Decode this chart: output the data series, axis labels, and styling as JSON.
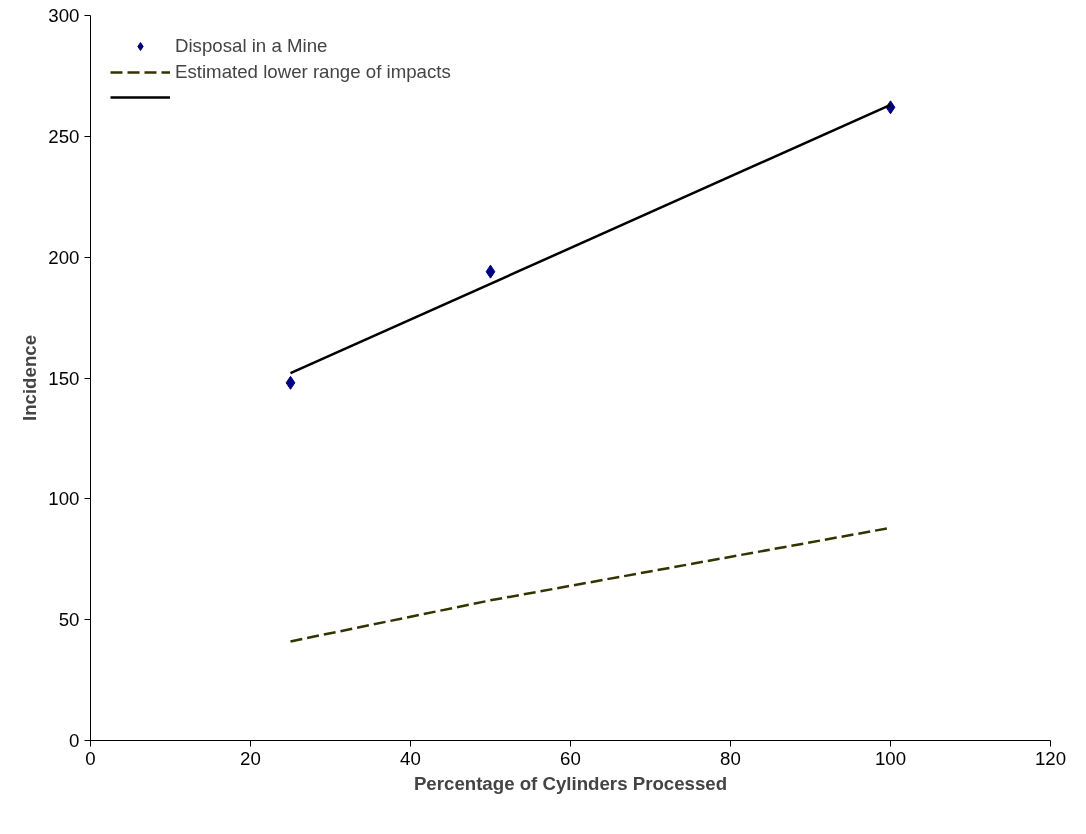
{
  "chart_data": {
    "type": "line",
    "xlabel": "Percentage of Cylinders Processed",
    "ylabel": "Incidence",
    "xlim": [
      0,
      120
    ],
    "xticks": [
      0,
      20,
      40,
      60,
      80,
      100,
      120
    ],
    "ylim": [
      0,
      300
    ],
    "yticks": [
      0,
      50,
      100,
      150,
      200,
      250,
      300
    ],
    "grid": false,
    "legend": "top left",
    "series": [
      {
        "name": "Disposal in a Mine",
        "type": "scatter",
        "marker": "diamond",
        "color": "#000080",
        "x": [
          25,
          50,
          100
        ],
        "values": [
          148,
          194,
          262
        ]
      },
      {
        "name": "Estimated lower range of impacts",
        "line_style": "dashed",
        "color": "#333300",
        "x": [
          25,
          50,
          100
        ],
        "values": [
          41,
          58,
          88
        ]
      },
      {
        "line_style": "solid",
        "color": "#000000",
        "x": [
          25,
          100
        ],
        "values": [
          152,
          263
        ]
      }
    ]
  }
}
